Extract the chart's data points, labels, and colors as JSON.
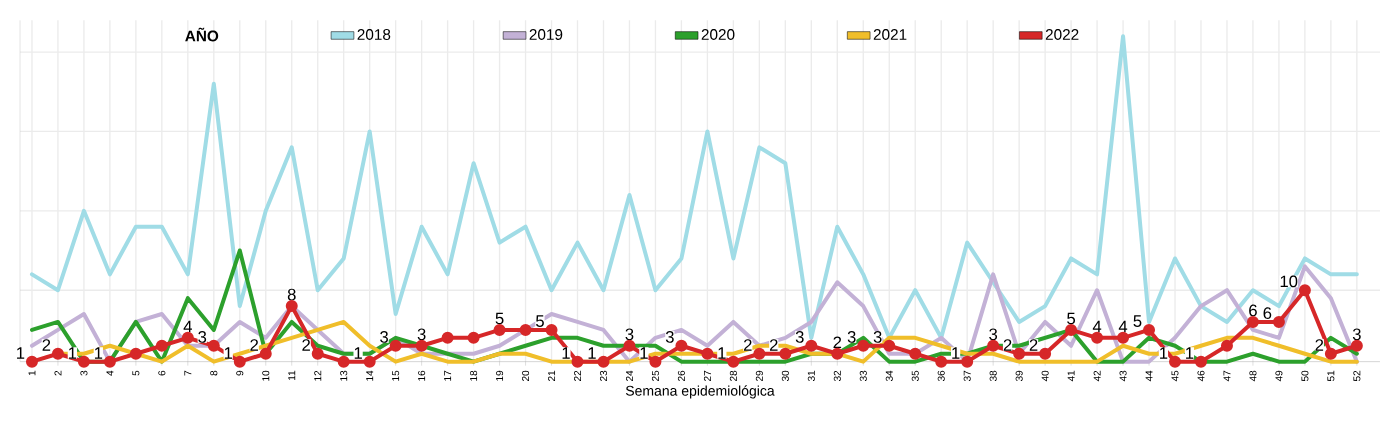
{
  "chart_data": {
    "type": "line",
    "xlabel": "Semana epidemiológica",
    "legend_title": "AÑO",
    "legend": "top",
    "grid": true,
    "line_style": "solid",
    "tick_labels": "x",
    "categories": [
      "1",
      "2",
      "3",
      "4",
      "5",
      "6",
      "7",
      "8",
      "9",
      "10",
      "11",
      "12",
      "13",
      "14",
      "15",
      "16",
      "17",
      "18",
      "19",
      "20",
      "21",
      "22",
      "23",
      "24",
      "25",
      "26",
      "27",
      "28",
      "29",
      "30",
      "31",
      "32",
      "33",
      "34",
      "35",
      "36",
      "37",
      "38",
      "39",
      "40",
      "41",
      "42",
      "43",
      "44",
      "45",
      "46",
      "47",
      "48",
      "49",
      "50",
      "51",
      "52"
    ],
    "ylim": [
      1,
      44
    ],
    "yticks": [
      {
        "value": 10,
        "label": null
      },
      {
        "value": 20,
        "label": null
      },
      {
        "value": 30,
        "label": null
      },
      {
        "value": 40,
        "label": null
      }
    ],
    "series": [
      {
        "name": "2018",
        "color": "#a0dce6",
        "values": [
          12,
          10,
          20,
          12,
          18,
          18,
          12,
          36,
          8,
          20,
          28,
          10,
          14,
          30,
          7,
          18,
          12,
          26,
          16,
          18,
          10,
          16,
          10,
          22,
          10,
          14,
          30,
          14,
          28,
          26,
          4,
          18,
          12,
          4,
          10,
          4,
          16,
          11,
          6,
          8,
          14,
          12,
          42,
          6,
          14,
          8,
          6,
          10,
          8,
          14,
          12,
          12
        ]
      },
      {
        "name": "2019",
        "color": "#c3b1d6",
        "values": [
          3,
          5,
          7,
          1,
          6,
          7,
          3,
          3,
          6,
          4,
          8,
          5,
          2,
          2,
          4,
          2,
          2,
          2,
          3,
          5,
          7,
          6,
          5,
          1,
          4,
          5,
          3,
          6,
          3,
          4,
          6,
          11,
          8,
          2,
          2,
          4,
          1,
          12,
          2,
          6,
          3,
          10,
          1,
          1,
          4,
          8,
          10,
          5,
          4,
          13,
          9,
          1
        ]
      },
      {
        "name": "2020",
        "color": "#2ca02c",
        "values": [
          5,
          6,
          1,
          1,
          6,
          1,
          9,
          5,
          15,
          2,
          6,
          3,
          2,
          2,
          4,
          3,
          2,
          1,
          2,
          3,
          4,
          4,
          3,
          3,
          3,
          1,
          1,
          1,
          1,
          1,
          2,
          2,
          4,
          1,
          1,
          2,
          2,
          3,
          3,
          4,
          5,
          1,
          1,
          4,
          3,
          1,
          1,
          2,
          1,
          1,
          4,
          2
        ]
      },
      {
        "name": "2021",
        "color": "#f0be2a",
        "values": [
          null,
          2,
          2,
          3,
          2,
          1,
          3,
          1,
          2,
          3,
          4,
          5,
          6,
          3,
          1,
          2,
          1,
          1,
          2,
          2,
          1,
          1,
          1,
          1,
          2,
          2,
          2,
          2,
          3,
          3,
          2,
          2,
          1,
          4,
          4,
          3,
          2,
          2,
          1,
          1,
          1,
          1,
          3,
          2,
          2,
          3,
          4,
          4,
          3,
          2,
          1,
          1
        ]
      },
      {
        "name": "2022",
        "color": "#d62728",
        "marker": "circle",
        "values": [
          1,
          2,
          1,
          1,
          2,
          3,
          4,
          3,
          1,
          2,
          8,
          2,
          1,
          1,
          3,
          3,
          4,
          4,
          5,
          5,
          5,
          1,
          1,
          3,
          1,
          3,
          2,
          1,
          2,
          2,
          3,
          2,
          3,
          3,
          2,
          1,
          1,
          3,
          2,
          2,
          5,
          4,
          4,
          5,
          1,
          1,
          3,
          6,
          6,
          10,
          2,
          3
        ],
        "value_labels": [
          "1",
          "2",
          "1",
          "1",
          null,
          null,
          "4",
          "3",
          "1",
          "2",
          "8",
          "2",
          null,
          "1",
          "3",
          "3",
          null,
          null,
          "5",
          null,
          "5",
          "1",
          "1",
          "3",
          "1",
          "3",
          null,
          "1",
          "2",
          "2",
          "3",
          "2",
          "3",
          "3",
          null,
          null,
          "1",
          "3",
          "2",
          "2",
          "5",
          "4",
          "4",
          "5",
          "1",
          "1",
          null,
          "6",
          "6",
          "10",
          "2",
          "3"
        ]
      }
    ]
  }
}
